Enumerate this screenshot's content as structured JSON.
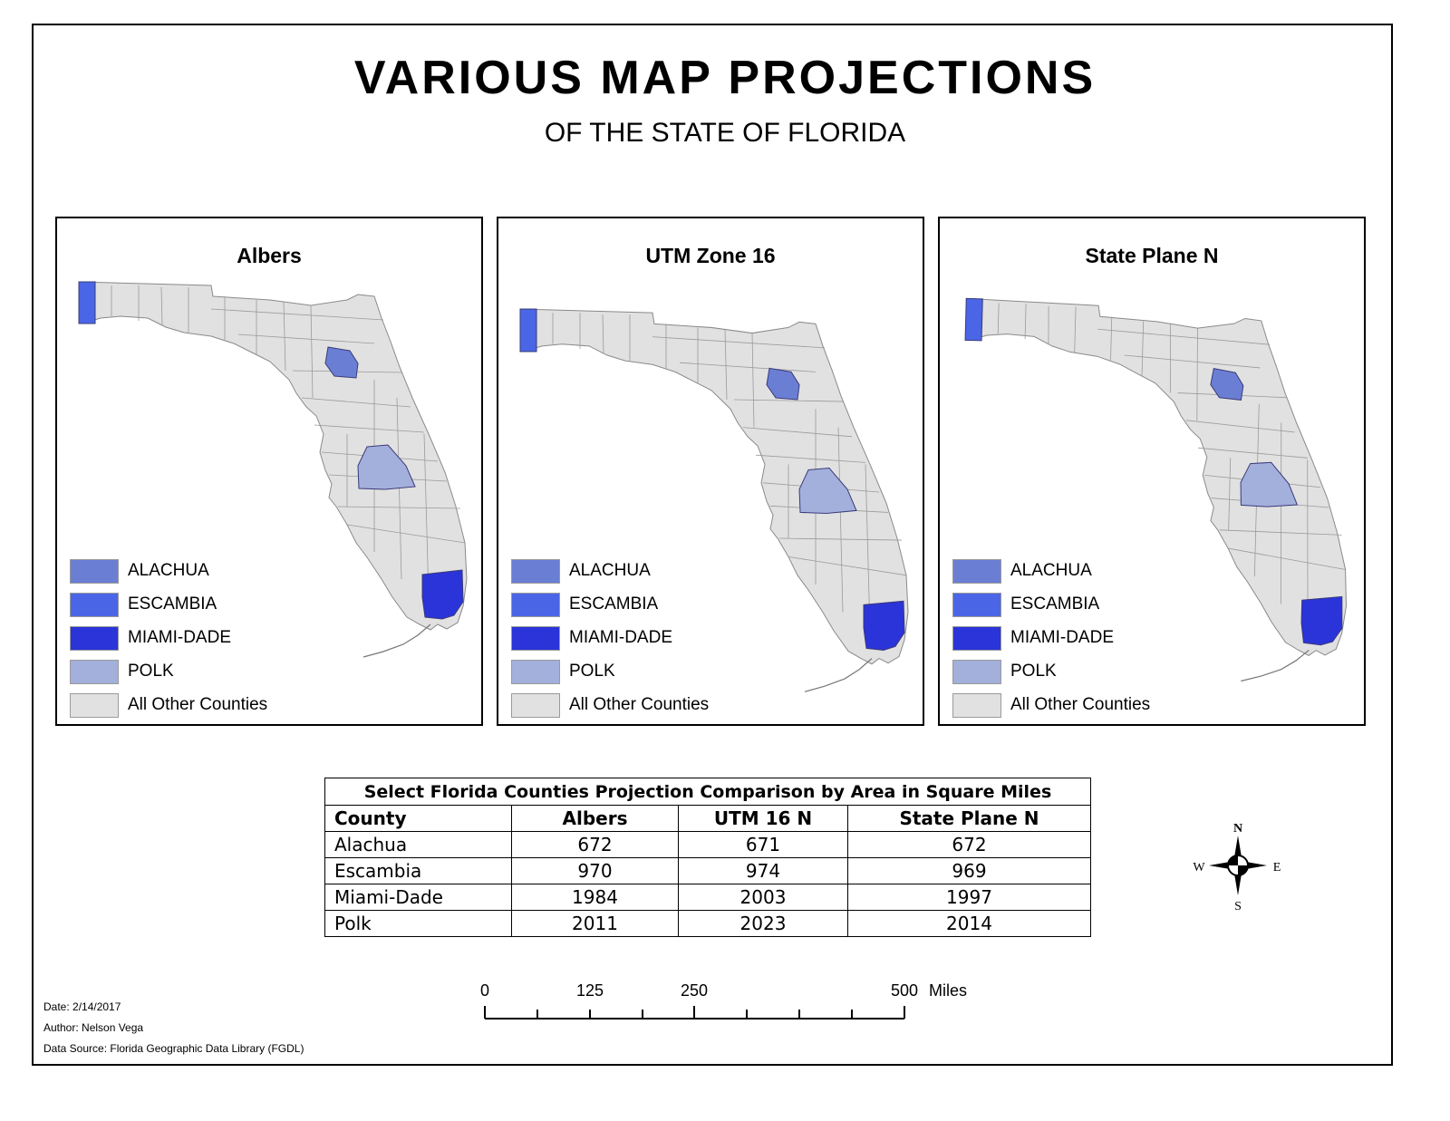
{
  "title": "VARIOUS MAP PROJECTIONS",
  "subtitle": "OF THE STATE OF FLORIDA",
  "colors": {
    "alachua": "#6a7fd4",
    "escambia": "#4a66e6",
    "miami_dade": "#2a34d8",
    "polk": "#a3b0dc",
    "other": "#e1e1e1",
    "border": "#8a8a8a"
  },
  "panels": [
    {
      "title": "Albers"
    },
    {
      "title": "UTM Zone 16"
    },
    {
      "title": "State Plane N"
    }
  ],
  "legend": [
    {
      "label": "ALACHUA",
      "color": "#6a7fd4"
    },
    {
      "label": "ESCAMBIA",
      "color": "#4a66e6"
    },
    {
      "label": "MIAMI-DADE",
      "color": "#2a34d8"
    },
    {
      "label": "POLK",
      "color": "#a3b0dc"
    },
    {
      "label": "All Other Counties",
      "color": "#e1e1e1"
    }
  ],
  "table": {
    "caption": "Select Florida Counties Projection Comparison by Area in Square Miles",
    "headers": [
      "County",
      "Albers",
      "UTM 16 N",
      "State Plane N"
    ],
    "rows": [
      [
        "Alachua",
        "672",
        "671",
        "672"
      ],
      [
        "Escambia",
        "970",
        "974",
        "969"
      ],
      [
        "Miami-Dade",
        "1984",
        "2003",
        "1997"
      ],
      [
        "Polk",
        "2011",
        "2023",
        "2014"
      ]
    ]
  },
  "compass": {
    "n": "N",
    "s": "S",
    "e": "E",
    "w": "W"
  },
  "scale": {
    "labels": [
      "0",
      "125",
      "250",
      "500"
    ],
    "unit": "Miles"
  },
  "meta": {
    "date": "Date: 2/14/2017",
    "author": "Author: Nelson Vega",
    "source": "Data Source: Florida Geographic Data Library (FGDL)"
  }
}
